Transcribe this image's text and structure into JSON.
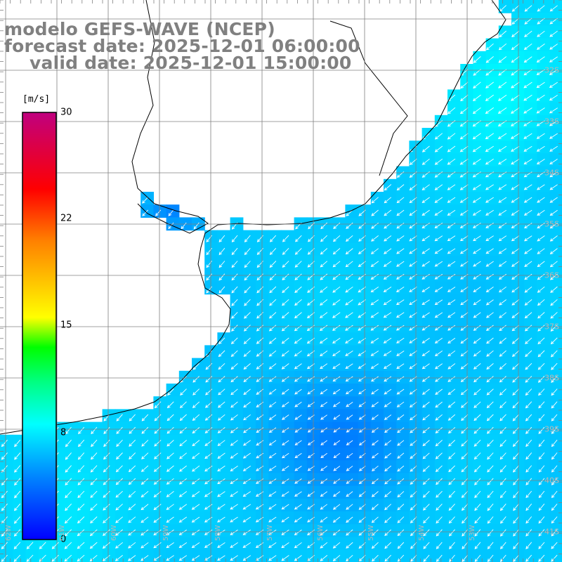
{
  "title": {
    "model": "modelo GEFS-WAVE (NCEP)",
    "forecast": "forecast date: 2025-12-01 06:00:00",
    "valid": "valid date: 2025-12-01 15:00:00"
  },
  "colorbar": {
    "unit": "[m/s]",
    "min": 0,
    "max": 30,
    "ticks": [
      "30",
      "22",
      "15",
      "8",
      "0"
    ],
    "tick_values": [
      30,
      22,
      15,
      8,
      0
    ],
    "colors": [
      "#0000ff",
      "#00b4ff",
      "#00ffff",
      "#00ff00",
      "#ffff00",
      "#ff8000",
      "#ff0000",
      "#ff0080",
      "#c00080"
    ]
  },
  "lat_labels": [
    "32S",
    "33S",
    "34S",
    "35S",
    "36S",
    "37S",
    "38S",
    "39S",
    "40S",
    "41S"
  ],
  "lon_labels": [
    "62W",
    "61W",
    "60W",
    "59W",
    "58W",
    "57W",
    "56W",
    "55W",
    "54W",
    "53W"
  ],
  "colors": {
    "land": "#ffffff",
    "coast": "#000000",
    "grid": "#808080",
    "arrow": "#ffffff",
    "title": "#808080"
  },
  "wind_direction": "from east-northeast"
}
